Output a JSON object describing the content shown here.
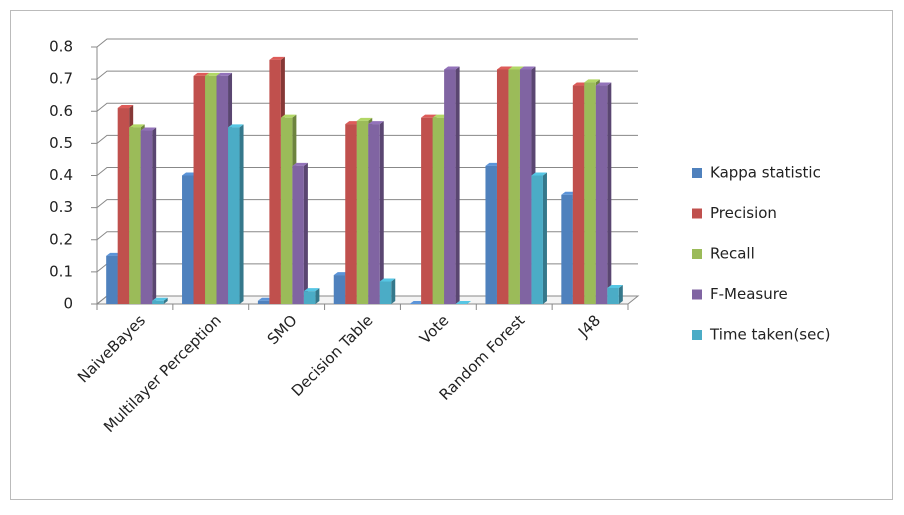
{
  "chart_data": {
    "type": "bar",
    "categories": [
      "NaiveBayes",
      "Multilayer Perception",
      "SMO",
      "Decision Table",
      "Vote",
      "Random Forest",
      "J48"
    ],
    "series": [
      {
        "name": "Kappa statistic",
        "color": "#4f81bd",
        "values": [
          0.15,
          0.4,
          0.01,
          0.09,
          0,
          0.43,
          0.34
        ]
      },
      {
        "name": "Precision",
        "color": "#c0504d",
        "values": [
          0.61,
          0.71,
          0.76,
          0.56,
          0.58,
          0.73,
          0.68
        ]
      },
      {
        "name": "Recall",
        "color": "#9bbb59",
        "values": [
          0.55,
          0.71,
          0.58,
          0.57,
          0.58,
          0.73,
          0.69
        ]
      },
      {
        "name": "F-Measure",
        "color": "#8064a2",
        "values": [
          0.54,
          0.71,
          0.43,
          0.56,
          0.73,
          0.73,
          0.68
        ]
      },
      {
        "name": "Time taken(sec)",
        "color": "#4bacc6",
        "values": [
          0.01,
          0.55,
          0.04,
          0.07,
          0,
          0.4,
          0.05
        ]
      }
    ],
    "ylim": [
      0,
      0.8
    ],
    "yticks": [
      0,
      0.1,
      0.2,
      0.3,
      0.4,
      0.5,
      0.6,
      0.7,
      0.8
    ],
    "grid": true,
    "legend": "right"
  }
}
